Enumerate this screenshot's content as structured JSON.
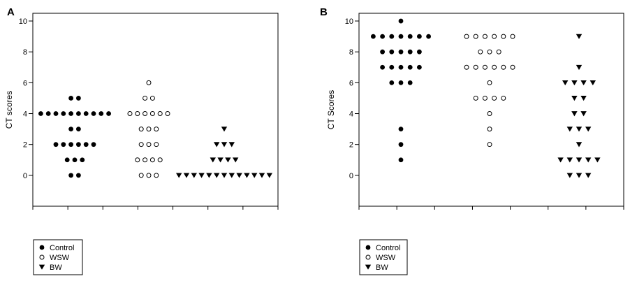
{
  "chart_data": [
    {
      "panel": "A",
      "type": "scatter",
      "ylabel": "CT scores",
      "ylim": [
        -2,
        10.5
      ],
      "yticks": [
        0,
        2,
        4,
        6,
        8,
        10
      ],
      "series": [
        {
          "name": "Control",
          "marker": "filled-circle",
          "values": [
            5,
            5,
            4,
            4,
            4,
            4,
            4,
            4,
            4,
            4,
            4,
            4,
            3,
            3,
            2,
            2,
            2,
            2,
            2,
            2,
            1,
            1,
            1,
            0,
            0
          ]
        },
        {
          "name": "WSW",
          "marker": "open-circle",
          "values": [
            6,
            5,
            5,
            4,
            4,
            4,
            4,
            4,
            4,
            3,
            3,
            3,
            2,
            2,
            2,
            1,
            1,
            1,
            1,
            0,
            0,
            0
          ]
        },
        {
          "name": "BW",
          "marker": "filled-triangle-down",
          "values": [
            3,
            2,
            2,
            2,
            1,
            1,
            1,
            1,
            0,
            0,
            0,
            0,
            0,
            0,
            0,
            0,
            0,
            0,
            0,
            0,
            0
          ]
        }
      ],
      "legend": [
        "Control",
        "WSW",
        "BW"
      ],
      "legend_position": "below-left"
    },
    {
      "panel": "B",
      "type": "scatter",
      "ylabel": "CT Scores",
      "ylim": [
        -2,
        10.5
      ],
      "yticks": [
        0,
        2,
        4,
        6,
        8,
        10
      ],
      "series": [
        {
          "name": "Control",
          "marker": "filled-circle",
          "values": [
            10,
            9,
            9,
            9,
            9,
            9,
            9,
            9,
            8,
            8,
            8,
            8,
            8,
            7,
            7,
            7,
            7,
            7,
            6,
            6,
            6,
            3,
            2,
            1
          ]
        },
        {
          "name": "WSW",
          "marker": "open-circle",
          "values": [
            9,
            9,
            9,
            9,
            9,
            9,
            8,
            8,
            8,
            7,
            7,
            7,
            7,
            7,
            7,
            6,
            5,
            5,
            5,
            5,
            4,
            3,
            2
          ]
        },
        {
          "name": "BW",
          "marker": "filled-triangle-down",
          "values": [
            9,
            7,
            6,
            6,
            6,
            6,
            5,
            5,
            4,
            4,
            3,
            3,
            3,
            2,
            1,
            1,
            1,
            1,
            1,
            0,
            0,
            0
          ]
        }
      ],
      "legend": [
        "Control",
        "WSW",
        "BW"
      ],
      "legend_position": "below-left"
    }
  ]
}
